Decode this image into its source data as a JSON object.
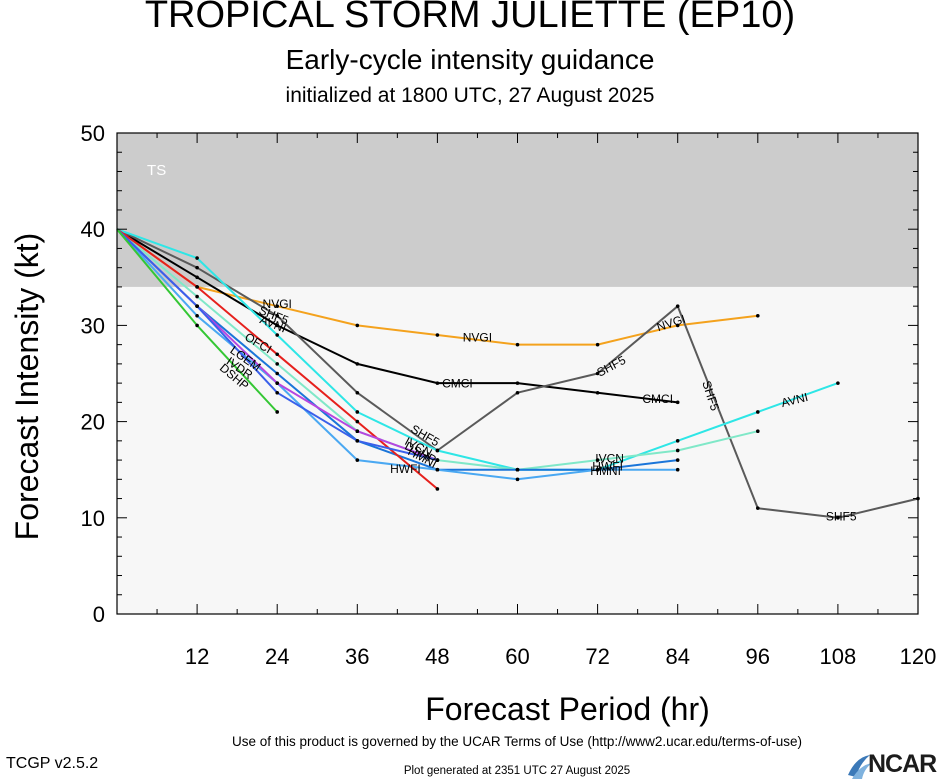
{
  "title": "TROPICAL STORM JULIETTE (EP10)",
  "subtitle": "Early-cycle intensity guidance",
  "init_line": "initialized at 1800 UTC, 27 August 2025",
  "footer": {
    "terms": "Use of this product is governed by the UCAR Terms of Use (http://www2.ucar.edu/terms-of-use)",
    "version": "TCGP v2.5.2",
    "generated": "Plot generated at 2351 UTC   27 August 2025",
    "logo_text": "NCAR"
  },
  "chart_data": {
    "type": "line",
    "xlabel": "Forecast Period (hr)",
    "ylabel": "Forecast Intensity (kt)",
    "xlim": [
      0,
      120
    ],
    "ylim": [
      0,
      50
    ],
    "xticks": [
      12,
      24,
      36,
      48,
      60,
      72,
      84,
      96,
      108,
      120
    ],
    "yticks": [
      0,
      10,
      20,
      30,
      40,
      50
    ],
    "bands": [
      {
        "label": "TS",
        "from": 34,
        "to": 50,
        "color": "#cccccc"
      }
    ],
    "plot_background": "#f7f7f7",
    "series": [
      {
        "name": "NVGI",
        "color": "#f4a21d",
        "x": [
          0,
          12,
          24,
          36,
          48,
          60,
          72,
          84,
          96
        ],
        "y": [
          40,
          34,
          32,
          30,
          29,
          28,
          28,
          30,
          31
        ]
      },
      {
        "name": "CMCI",
        "color": "#000000",
        "x": [
          0,
          12,
          24,
          36,
          48,
          60,
          72,
          84
        ],
        "y": [
          40,
          35,
          30,
          26,
          24,
          24,
          23,
          22
        ]
      },
      {
        "name": "SHF5",
        "color": "#5a5a5a",
        "x": [
          0,
          12,
          24,
          36,
          48,
          60,
          72,
          84,
          96,
          108,
          120
        ],
        "y": [
          40,
          36,
          31,
          23,
          17,
          23,
          25,
          32,
          11,
          10,
          12
        ]
      },
      {
        "name": "AVNI",
        "color": "#2ee6e6",
        "x": [
          0,
          12,
          24,
          36,
          48,
          60,
          72,
          84,
          96,
          108
        ],
        "y": [
          40,
          37,
          29,
          21,
          17,
          15,
          15,
          18,
          21,
          24
        ]
      },
      {
        "name": "IVCN",
        "color": "#80e8c8",
        "x": [
          0,
          12,
          24,
          36,
          48,
          60,
          72,
          84,
          96
        ],
        "y": [
          40,
          33,
          26,
          19,
          16,
          15,
          16,
          17,
          19
        ]
      },
      {
        "name": "HWFI",
        "color": "#1a75d9",
        "x": [
          0,
          12,
          24,
          36,
          48,
          60,
          72,
          84
        ],
        "y": [
          40,
          32,
          25,
          18,
          15,
          15,
          15,
          16
        ]
      },
      {
        "name": "HMNI",
        "color": "#4aa8f2",
        "x": [
          0,
          12,
          24,
          36,
          48,
          60,
          72,
          84
        ],
        "y": [
          40,
          31,
          24,
          16,
          15,
          14,
          15,
          15
        ]
      },
      {
        "name": "OFCI",
        "color": "#e6201c",
        "x": [
          0,
          12,
          24,
          36,
          48
        ],
        "y": [
          40,
          34,
          27,
          20,
          13
        ]
      },
      {
        "name": "DSHP",
        "color": "#b646e0",
        "x": [
          0,
          12,
          24,
          36,
          48
        ],
        "y": [
          40,
          32,
          24,
          19,
          16
        ]
      },
      {
        "name": "LGEM",
        "color": "#3a60ea",
        "x": [
          0,
          12,
          24,
          36,
          48
        ],
        "y": [
          40,
          32,
          23,
          18,
          16
        ]
      },
      {
        "name": "IVDR",
        "color": "#34c734",
        "x": [
          0,
          12,
          24
        ],
        "y": [
          40,
          30,
          21
        ]
      }
    ],
    "labels": [
      {
        "text": "NVGI",
        "series": "NVGI",
        "x": 24,
        "y": 32.3,
        "rot": 0
      },
      {
        "text": "NVGI",
        "series": "NVGI",
        "x": 54,
        "y": 28.8,
        "rot": 0
      },
      {
        "text": "NVGI",
        "series": "NVGI",
        "x": 83,
        "y": 30.3,
        "rot": -18
      },
      {
        "text": "CMCI",
        "series": "CMCI",
        "x": 51,
        "y": 24,
        "rot": 0
      },
      {
        "text": "CMCI",
        "series": "CMCI",
        "x": 81,
        "y": 22.4,
        "rot": 0
      },
      {
        "text": "SHF5",
        "series": "SHF5",
        "x": 74,
        "y": 25.8,
        "rot": -28
      },
      {
        "text": "SHF5",
        "series": "SHF5",
        "x": 89,
        "y": 22.7,
        "rot": 72
      },
      {
        "text": "SHF5",
        "series": "SHF5",
        "x": 108.5,
        "y": 10.2,
        "rot": 0
      },
      {
        "text": "SHF5",
        "series": "SHF5",
        "x": 46.2,
        "y": 18.6,
        "rot": 30
      },
      {
        "text": "SHF5",
        "series": "SHF5",
        "x": 23.5,
        "y": 31.1,
        "rot": 22
      },
      {
        "text": "AVNI",
        "series": "AVNI",
        "x": 101.5,
        "y": 22.3,
        "rot": -14
      },
      {
        "text": "AVNI",
        "series": "AVNI",
        "x": 23.4,
        "y": 30.2,
        "rot": 22
      },
      {
        "text": "IVCN",
        "series": "IVCN",
        "x": 73.8,
        "y": 16.2,
        "rot": 0
      },
      {
        "text": "IVCN",
        "series": "IVCN",
        "x": 45.2,
        "y": 17.4,
        "rot": 28
      },
      {
        "text": "HMNI",
        "series": "HMNI",
        "x": 73.2,
        "y": 14.9,
        "rot": 0
      },
      {
        "text": "HMNI",
        "series": "HMNI",
        "x": 45.8,
        "y": 16.3,
        "rot": 28
      },
      {
        "text": "HWFI",
        "series": "HWFI",
        "x": 43.2,
        "y": 15.1,
        "rot": 0
      },
      {
        "text": "HWFI",
        "series": "HWFI",
        "x": 73.5,
        "y": 15.4,
        "rot": 0
      },
      {
        "text": "OFCI",
        "series": "OFCI",
        "x": 21.2,
        "y": 28.2,
        "rot": 30
      },
      {
        "text": "LGEM",
        "series": "LGEM",
        "x": 19.3,
        "y": 26.6,
        "rot": 35
      },
      {
        "text": "IVDR",
        "series": "IVDR",
        "x": 18.4,
        "y": 25.6,
        "rot": 35
      },
      {
        "text": "DSHP",
        "series": "DSHP",
        "x": 17.6,
        "y": 24.7,
        "rot": 40
      },
      {
        "text": "DSHP",
        "series": "DSHP",
        "x": 45.5,
        "y": 16.8,
        "rot": 28
      }
    ]
  }
}
